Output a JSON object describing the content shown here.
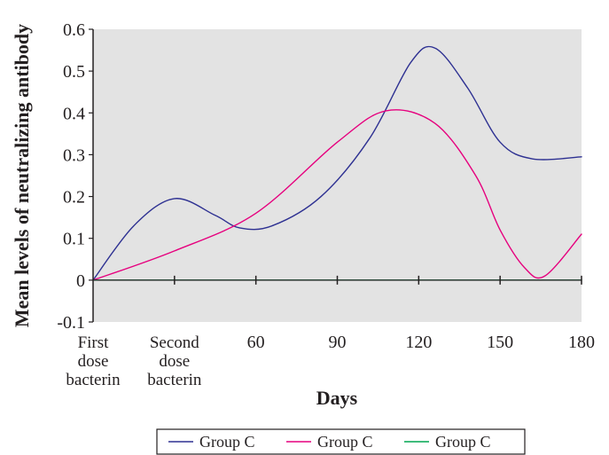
{
  "chart_data": {
    "type": "line",
    "title": "",
    "xlabel": "Days",
    "ylabel": "Mean levels of neutralizing antibody",
    "ylim": [
      -0.1,
      0.6
    ],
    "y_ticks": [
      "-0.1",
      "0",
      "0.1",
      "0.2",
      "0.3",
      "0.4",
      "0.5",
      "0.6"
    ],
    "x_tick_labels": [
      [
        "First",
        "dose",
        "bacterin"
      ],
      [
        "Second",
        "dose",
        "bacterin"
      ],
      [
        "60"
      ],
      [
        "90"
      ],
      [
        "120"
      ],
      [
        "150"
      ],
      [
        "180"
      ]
    ],
    "x_index_range": [
      0,
      6
    ],
    "plot_background": "#e3e3e3",
    "grid": false,
    "legend_position": "bottom",
    "series": [
      {
        "name": "Group C",
        "color": "#2e3192",
        "points": [
          [
            0,
            0.0
          ],
          [
            0.5,
            0.13
          ],
          [
            1,
            0.195
          ],
          [
            1.5,
            0.155
          ],
          [
            1.8,
            0.125
          ],
          [
            2.2,
            0.13
          ],
          [
            2.8,
            0.2
          ],
          [
            3.4,
            0.34
          ],
          [
            3.9,
            0.52
          ],
          [
            4.2,
            0.555
          ],
          [
            4.6,
            0.46
          ],
          [
            5,
            0.33
          ],
          [
            5.4,
            0.29
          ],
          [
            6,
            0.295
          ]
        ]
      },
      {
        "name": "Group C",
        "color": "#e6007e",
        "points": [
          [
            0,
            0.0
          ],
          [
            1,
            0.07
          ],
          [
            2,
            0.16
          ],
          [
            3,
            0.33
          ],
          [
            3.6,
            0.405
          ],
          [
            4.2,
            0.375
          ],
          [
            4.7,
            0.25
          ],
          [
            5,
            0.12
          ],
          [
            5.3,
            0.03
          ],
          [
            5.55,
            0.01
          ],
          [
            6,
            0.11
          ]
        ]
      },
      {
        "name": "Group C",
        "color": "#00a651",
        "points": [
          [
            0,
            0.0
          ],
          [
            6,
            0.0
          ]
        ]
      }
    ]
  }
}
